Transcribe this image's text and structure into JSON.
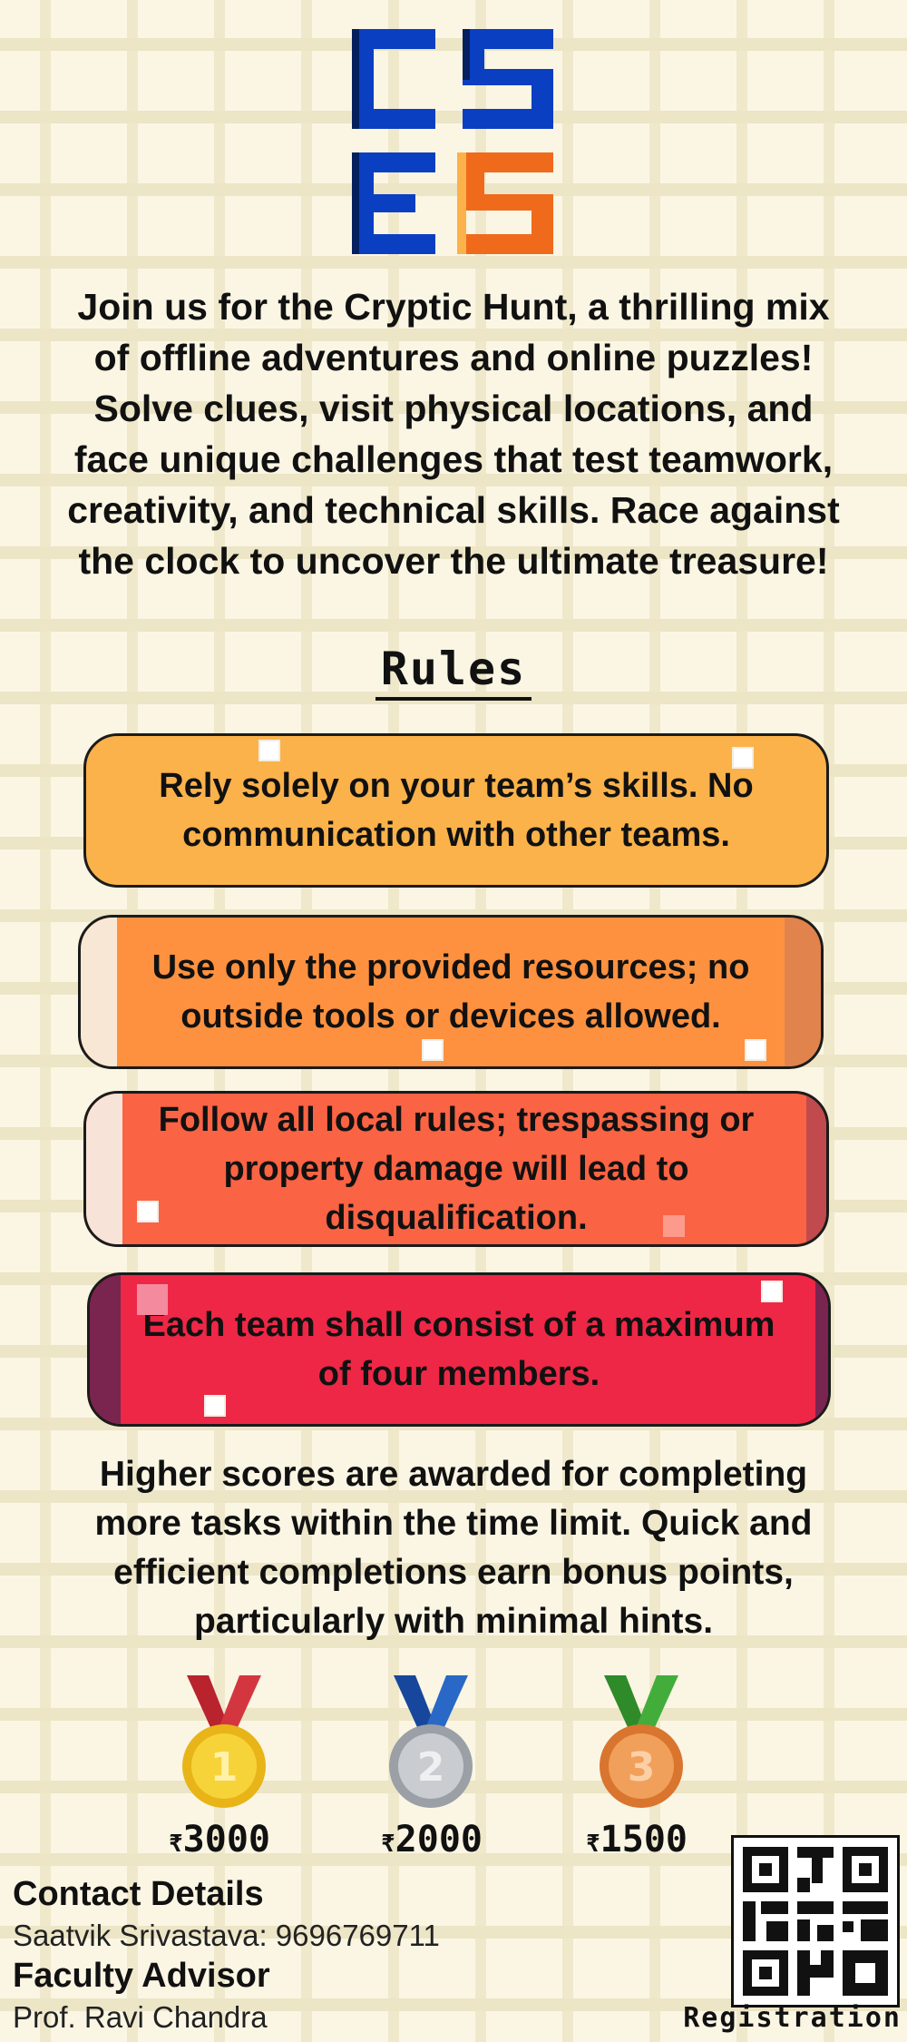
{
  "logo": {
    "text": "CSES",
    "colors": {
      "primary_blue": "#0b3fc2",
      "dark_blue": "#05205e",
      "orange": "#f06a1c"
    }
  },
  "intro": "Join us for the Cryptic Hunt, a thrilling mix of offline adventures and online puzzles! Solve clues, visit physical locations, and face unique challenges that test teamwork, creativity, and technical skills. Race against the clock to uncover the ultimate treasure!",
  "rules": {
    "title": "Rules",
    "items": [
      {
        "text": "Rely solely on your team’s skills. No communication with other teams.",
        "color": "#fbb24a"
      },
      {
        "text": "Use only the provided resources; no outside tools or devices allowed.",
        "color": "#fe913f"
      },
      {
        "text": "Follow all local rules; trespassing or property damage will lead to disqualification.",
        "color": "#fa6343"
      },
      {
        "text": "Each team shall consist of a maximum of four members.",
        "color": "#ee2746"
      }
    ]
  },
  "scoring": "Higher scores are awarded for completing more tasks within the time limit. Quick and efficient completions earn bonus points, particularly with minimal hints.",
  "prizes": [
    {
      "rank": "1",
      "currency": "₹",
      "amount": "3000",
      "medal": "gold-medal-icon"
    },
    {
      "rank": "2",
      "currency": "₹",
      "amount": "2000",
      "medal": "silver-medal-icon"
    },
    {
      "rank": "3",
      "currency": "₹",
      "amount": "1500",
      "medal": "bronze-medal-icon"
    }
  ],
  "contact": {
    "heading": "Contact Details",
    "line": "Saatvik Srivastava: 9696769711",
    "advisor_heading": "Faculty Advisor",
    "advisor": "Prof. Ravi Chandra"
  },
  "registration": {
    "label": "Registration",
    "icon": "qr-code-icon"
  }
}
